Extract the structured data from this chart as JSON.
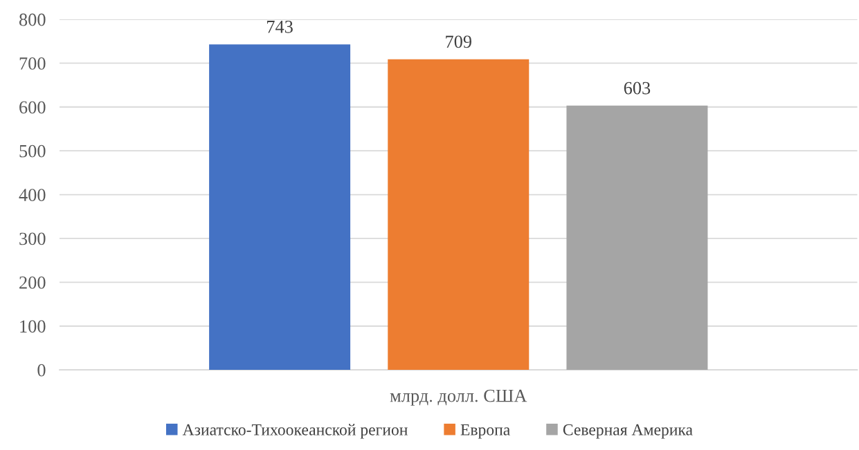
{
  "chart_data": {
    "type": "bar",
    "categories": [
      "млрд. долл. США"
    ],
    "series": [
      {
        "name": "Азиатско-Тихоокеанской регион",
        "color": "#4472c4",
        "values": [
          743
        ]
      },
      {
        "name": "Европа",
        "color": "#ed7d31",
        "values": [
          709
        ]
      },
      {
        "name": "Северная Америка",
        "color": "#a5a5a5",
        "values": [
          603
        ]
      }
    ],
    "ylim": [
      0,
      800
    ],
    "yticks": [
      0,
      100,
      200,
      300,
      400,
      500,
      600,
      700,
      800
    ],
    "grid": "y",
    "legend": "bottom",
    "data_labels": true
  }
}
